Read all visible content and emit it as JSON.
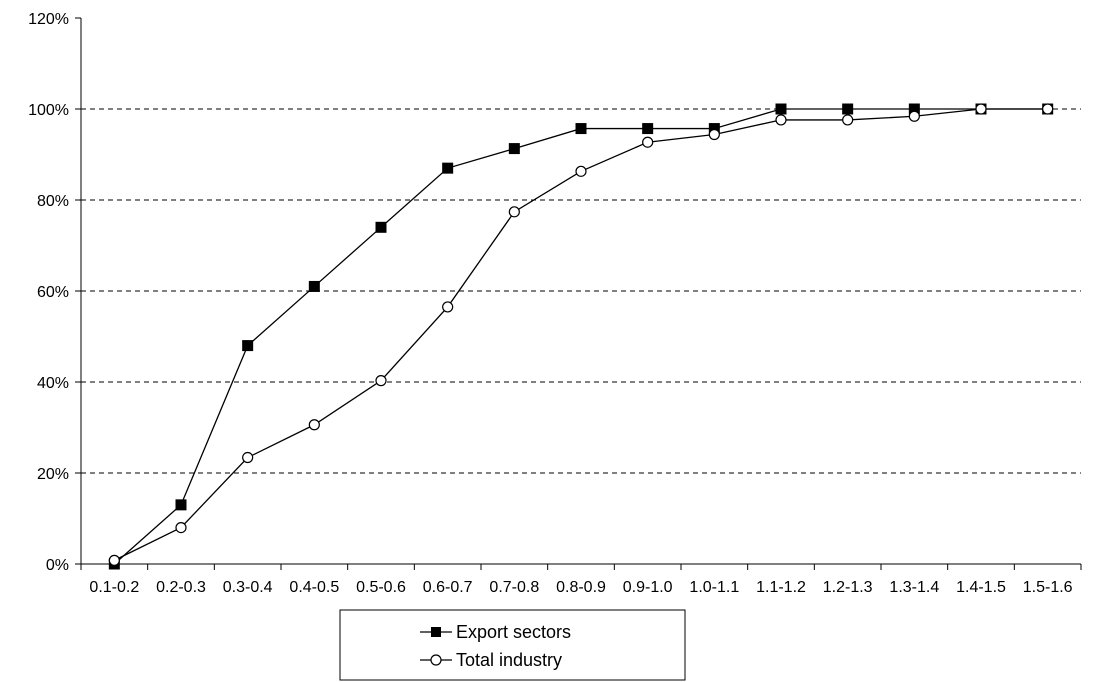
{
  "chart_data": {
    "type": "line",
    "categories": [
      "0.1-0.2",
      "0.2-0.3",
      "0.3-0.4",
      "0.4-0.5",
      "0.5-0.6",
      "0.6-0.7",
      "0.7-0.8",
      "0.8-0.9",
      "0.9-1.0",
      "1.0-1.1",
      "1.1-1.2",
      "1.2-1.3",
      "1.3-1.4",
      "1.4-1.5",
      "1.5-1.6"
    ],
    "series": [
      {
        "name": "Export sectors",
        "marker": "filled-square",
        "values": [
          0,
          13,
          48,
          61,
          74,
          87,
          91.3,
          95.7,
          95.7,
          95.7,
          100,
          100,
          100,
          100,
          100
        ]
      },
      {
        "name": "Total industry",
        "marker": "open-circle",
        "values": [
          0.8,
          8,
          23.4,
          30.6,
          40.3,
          56.5,
          77.4,
          86.3,
          92.7,
          94.4,
          97.6,
          97.6,
          98.4,
          100,
          100
        ]
      }
    ],
    "yticks": [
      "0%",
      "20%",
      "40%",
      "60%",
      "80%",
      "100%",
      "120%"
    ],
    "ytick_values": [
      0,
      20,
      40,
      60,
      80,
      100,
      120
    ],
    "ylim": [
      0,
      120
    ],
    "grid": "horizontal-dashed",
    "legend": "bottom-center",
    "colors": {
      "line": "#000000",
      "grid": "#000000",
      "marker_fill_open": "#ffffff"
    }
  }
}
